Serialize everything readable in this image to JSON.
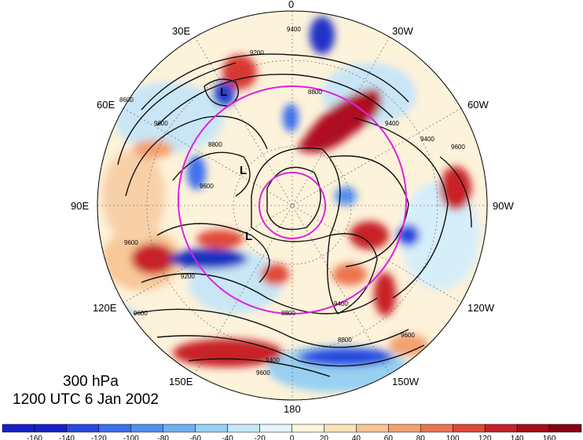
{
  "title": {
    "level": "300 hPa",
    "valid_time": "1200 UTC 6 Jan 2002"
  },
  "longitude_labels": {
    "lon_0": "0",
    "lon_30w": "30W",
    "lon_60w": "60W",
    "lon_90w": "90W",
    "lon_120w": "120W",
    "lon_150w": "150W",
    "lon_180": "180",
    "lon_150e": "150E",
    "lon_120e": "120E",
    "lon_90e": "90E",
    "lon_60e": "60E",
    "lon_30e": "30E"
  },
  "contour_labels": [
    "9400",
    "9200",
    "9600",
    "8800",
    "8800",
    "9600",
    "9400",
    "9400",
    "9600",
    "9600",
    "9200",
    "8800",
    "9400",
    "9600",
    "9400",
    "9600",
    "8800",
    "9600",
    "8600"
  ],
  "low_centers": [
    "L",
    "L",
    "L"
  ],
  "colorbar": {
    "ticks": [
      "-160",
      "-140",
      "-120",
      "-100",
      "-80",
      "-60",
      "-40",
      "-20",
      "0",
      "20",
      "40",
      "60",
      "80",
      "100",
      "120",
      "140",
      "160"
    ],
    "colors": [
      "#1820c8",
      "#2848e0",
      "#3c70f0",
      "#5090f0",
      "#70b0f0",
      "#98d0f4",
      "#c4e8f8",
      "#e4f6fc",
      "#fdf6dc",
      "#fce2b8",
      "#f8c494",
      "#f4a070",
      "#ec7450",
      "#e04838",
      "#c82028",
      "#a80c18",
      "#860010"
    ]
  }
}
